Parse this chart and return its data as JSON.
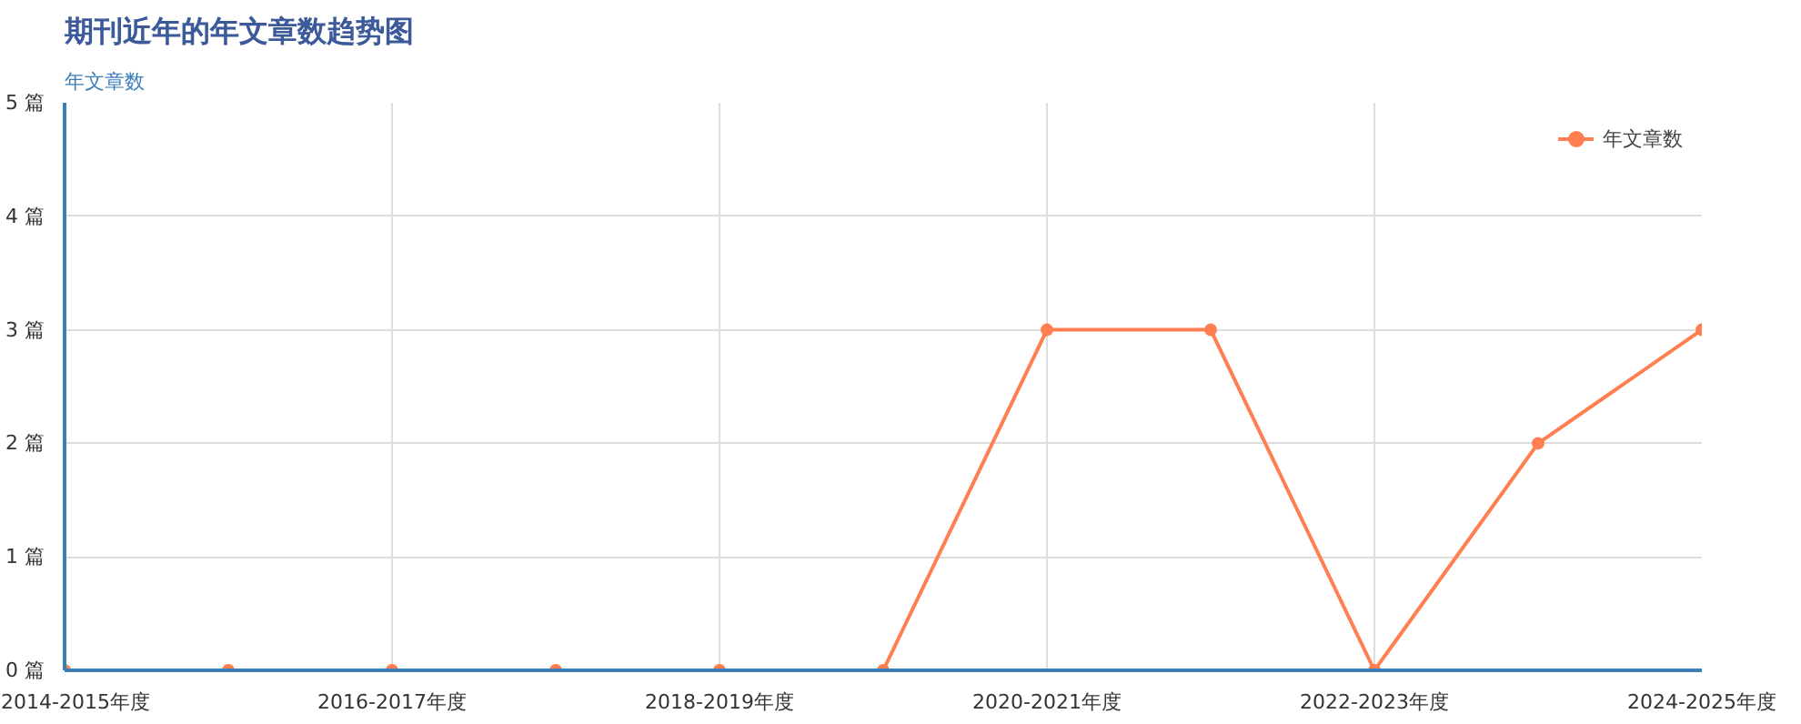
{
  "chart_data": {
    "type": "line",
    "title": "期刊近年的年文章数趋势图",
    "ylabel": "年文章数",
    "categories": [
      "2014-2015年度",
      null,
      "2016-2017年度",
      null,
      "2018-2019年度",
      null,
      "2020-2021年度",
      null,
      "2022-2023年度",
      null,
      "2024-2025年度"
    ],
    "series": [
      {
        "name": "年文章数",
        "color": "#ff7f50",
        "values": [
          0,
          0,
          0,
          0,
          0,
          0,
          3,
          3,
          0,
          2,
          3
        ]
      }
    ],
    "ylim": [
      0,
      5
    ],
    "yticks": [
      {
        "value": 0,
        "label": "0 篇"
      },
      {
        "value": 1,
        "label": "1 篇"
      },
      {
        "value": 2,
        "label": "2 篇"
      },
      {
        "value": 3,
        "label": "3 篇"
      },
      {
        "value": 4,
        "label": "4 篇"
      },
      {
        "value": 5,
        "label": "5 篇"
      }
    ],
    "grid": true,
    "legend": "top right",
    "marker": "circle",
    "line_style": "solid"
  }
}
